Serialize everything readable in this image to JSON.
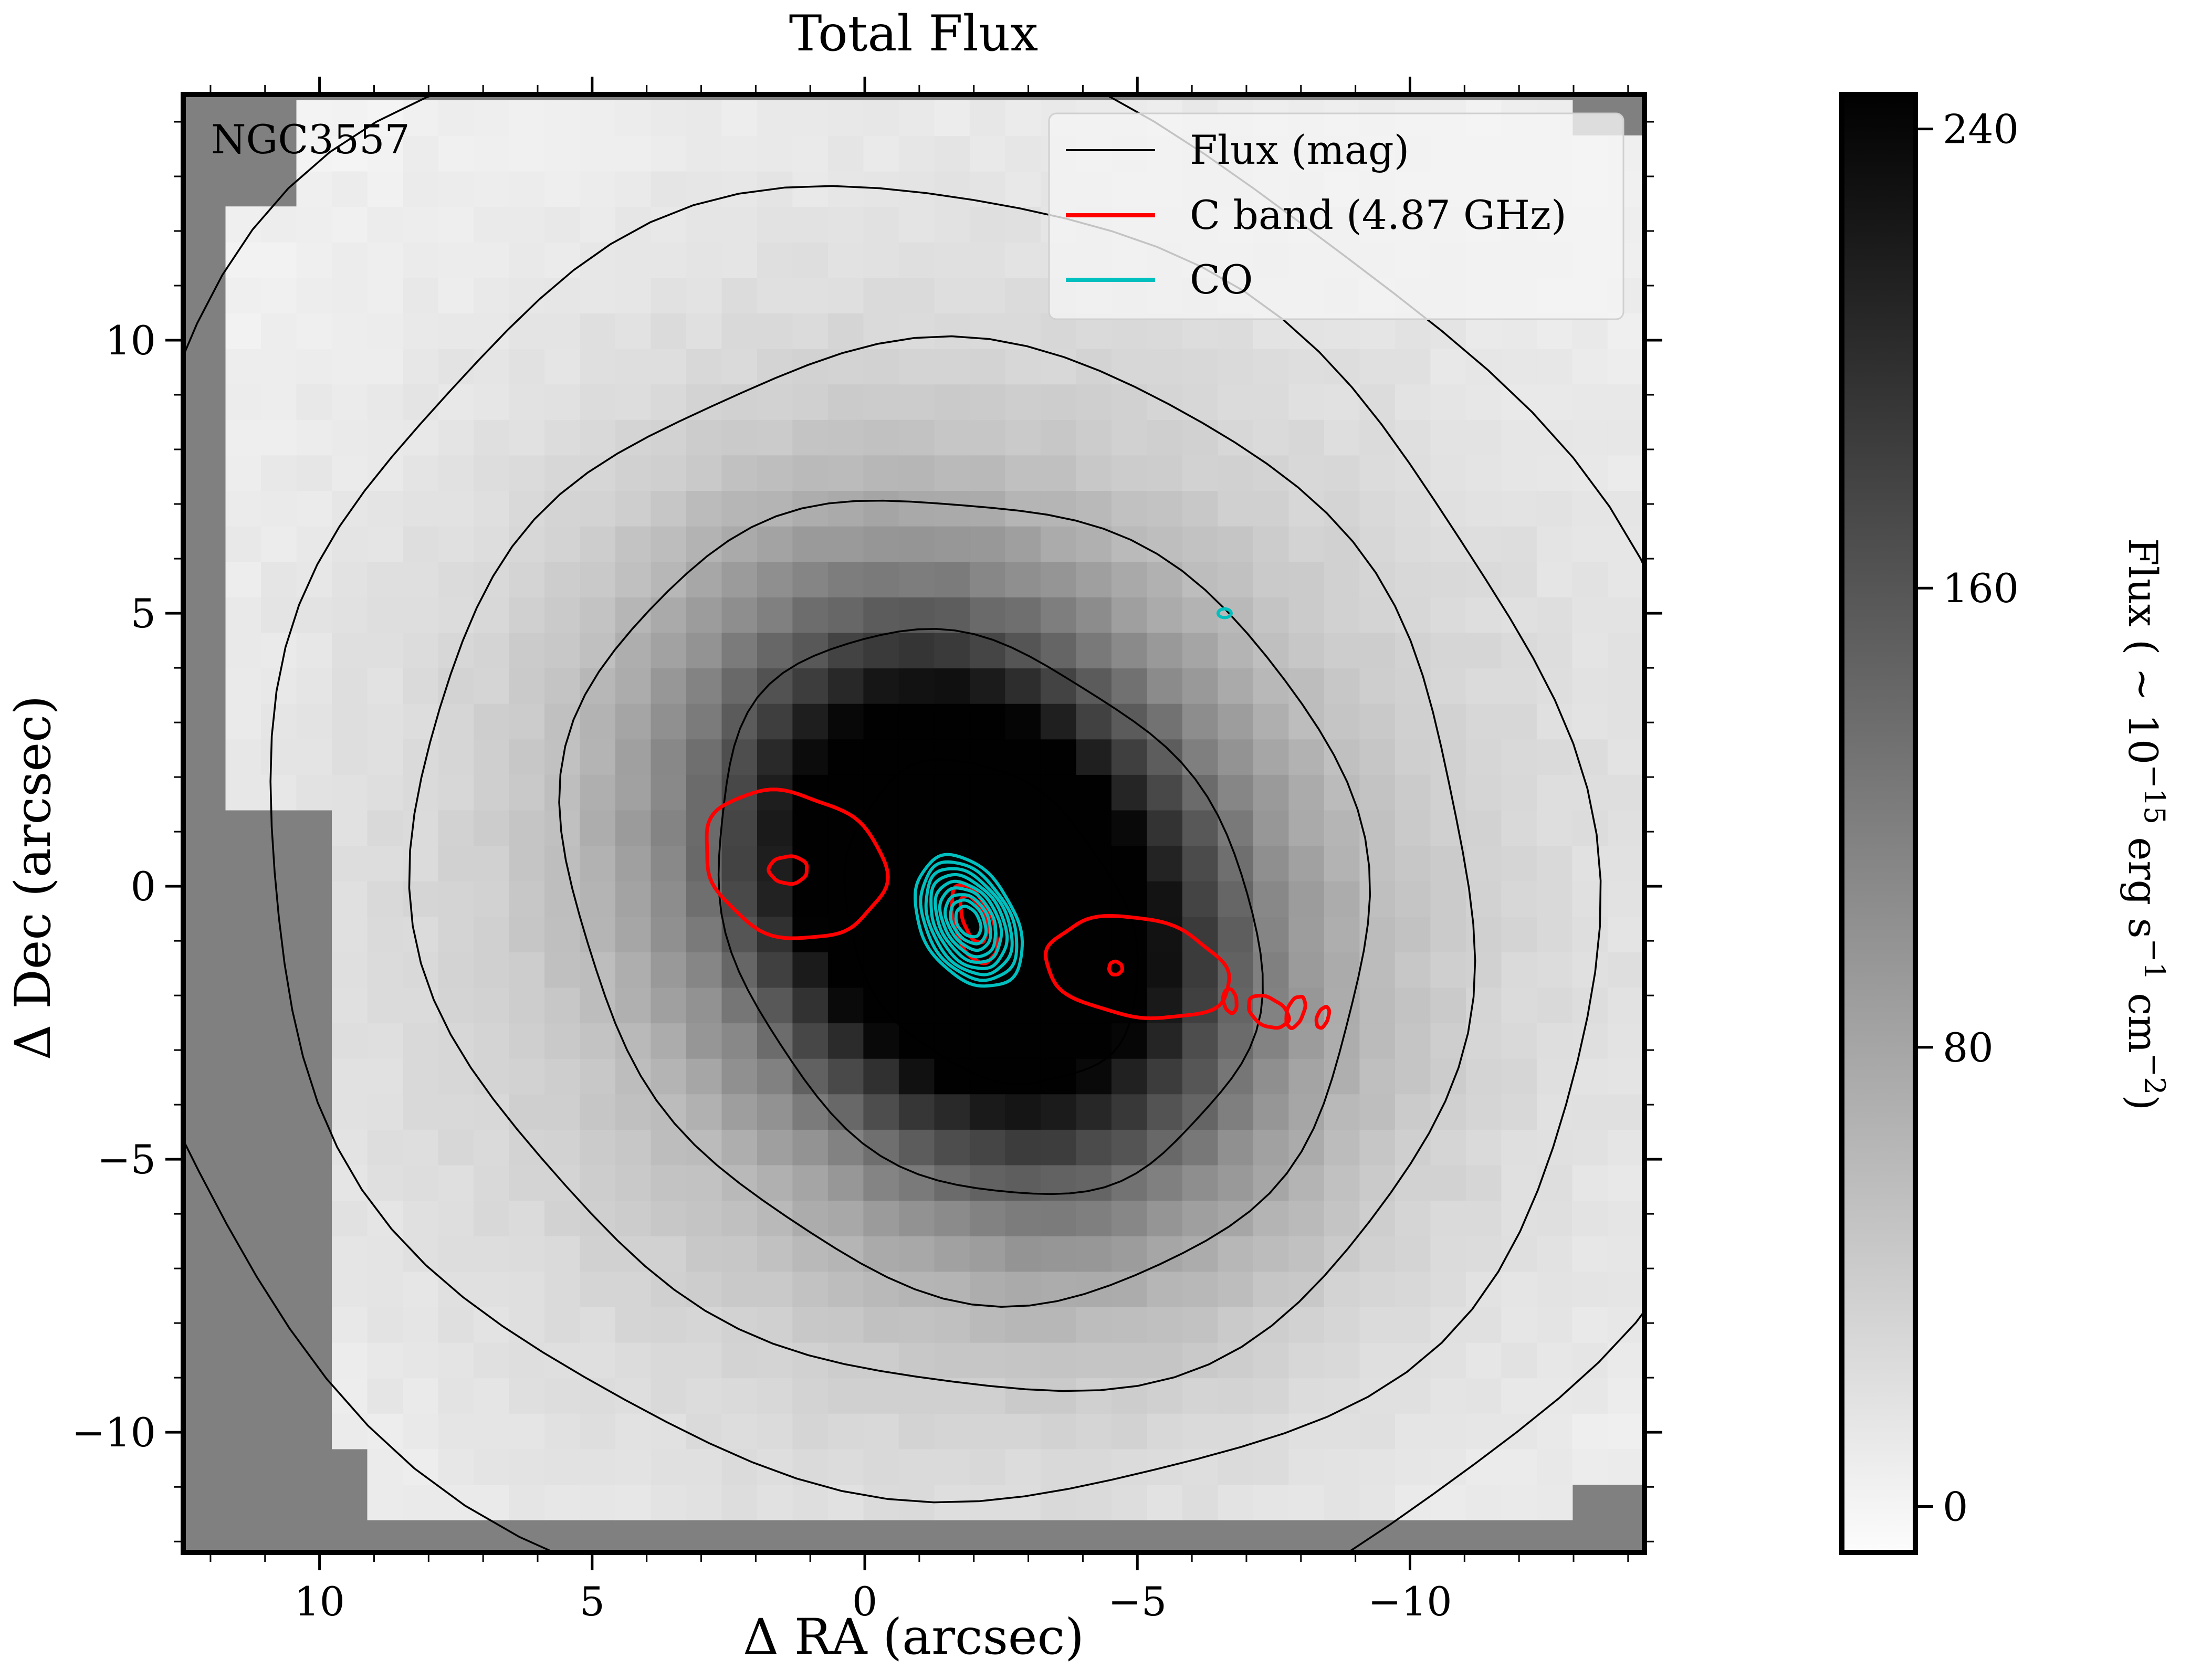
{
  "chart_data": {
    "type": "heatmap",
    "title": "Total Flux",
    "object_label": "NGC3557",
    "xlabel": "Δ RA (arcsec)",
    "ylabel": "Δ Dec (arcsec)",
    "xlim": [
      12.5,
      -14.3
    ],
    "ylim": [
      -12.2,
      14.5
    ],
    "x_axis_inverted": true,
    "xticks": [
      10,
      5,
      0,
      -5,
      -10
    ],
    "xtick_labels": [
      "10",
      "5",
      "0",
      "−5",
      "−10"
    ],
    "yticks": [
      -10,
      -5,
      0,
      5,
      10
    ],
    "ytick_labels": [
      "−10",
      "−5",
      "0",
      "5",
      "10"
    ],
    "legend_position": "upper right",
    "legend": [
      {
        "label": "Flux (mag)",
        "color": "#000000"
      },
      {
        "label": "C band (4.87 GHz)",
        "color": "#ff0000"
      },
      {
        "label": "CO",
        "color": "#00bfbf"
      }
    ],
    "colorbar": {
      "label": "Flux ( ~ 10^-15 erg s^-1 cm^-2)",
      "label_main": "Flux ( ~ 10",
      "label_exp1": "−15",
      "label_mid1": " erg s",
      "label_exp2": "−1",
      "label_mid2": " cm",
      "label_exp3": "−2",
      "label_end": ")",
      "ticks": [
        0,
        80,
        160,
        240
      ],
      "tick_labels": [
        "0",
        "80",
        "160",
        "240"
      ],
      "range": [
        -8,
        246
      ],
      "cmap": "Greys"
    },
    "image_model": {
      "peak_flux": 330,
      "center": [
        -2.0,
        -0.5
      ],
      "sigma_major": 3.6,
      "sigma_minor": 2.7,
      "halo_amplitude": 70,
      "halo_sigma": 7.5,
      "pixel_size": 0.65,
      "background_color": "#808080"
    },
    "flux_contours": [
      {
        "level": 1,
        "center": [
          -2.3,
          -0.7
        ],
        "a": 3.2,
        "b": 2.4,
        "angle_deg": 55
      },
      {
        "level": 2,
        "center": [
          -2.2,
          -0.5
        ],
        "a": 5.6,
        "b": 4.5,
        "angle_deg": 50
      },
      {
        "level": 3,
        "center": [
          -1.9,
          -0.1
        ],
        "a": 7.8,
        "b": 6.9,
        "angle_deg": 45
      },
      {
        "level": 4,
        "center": [
          -1.6,
          0.3
        ],
        "a": 10.0,
        "b": 9.3,
        "angle_deg": 40
      },
      {
        "level": 5,
        "center": [
          -1.2,
          0.6
        ],
        "a": 12.6,
        "b": 11.6,
        "angle_deg": 40
      },
      {
        "level": 6,
        "center": [
          -0.6,
          0.8
        ],
        "a": 16.0,
        "b": 14.0,
        "angle_deg": 40
      }
    ],
    "c_band_contours": [
      {
        "center": [
          1.3,
          0.4
        ],
        "a": 1.7,
        "b": 1.3,
        "angle_deg": 20
      },
      {
        "center": [
          1.4,
          0.3
        ],
        "a": 0.35,
        "b": 0.25,
        "angle_deg": 0
      },
      {
        "center": [
          -2.0,
          -0.7
        ],
        "a": 0.75,
        "b": 0.35,
        "angle_deg": 70
      },
      {
        "center": [
          -2.0,
          -0.6
        ],
        "a": 0.45,
        "b": 0.2,
        "angle_deg": 70
      },
      {
        "center": [
          -5.0,
          -1.5
        ],
        "a": 1.7,
        "b": 0.9,
        "angle_deg": 10
      },
      {
        "center": [
          -4.6,
          -1.5
        ],
        "a": 0.12,
        "b": 0.12,
        "angle_deg": 0
      },
      {
        "center": [
          -6.7,
          -2.1
        ],
        "a": 0.22,
        "b": 0.12,
        "angle_deg": 80
      },
      {
        "center": [
          -7.4,
          -2.3
        ],
        "a": 0.4,
        "b": 0.25,
        "angle_deg": 30
      },
      {
        "center": [
          -7.9,
          -2.3
        ],
        "a": 0.15,
        "b": 0.3,
        "angle_deg": 20
      },
      {
        "center": [
          -8.4,
          -2.4
        ],
        "a": 0.1,
        "b": 0.2,
        "angle_deg": 20
      }
    ],
    "co_contours": {
      "center": [
        -1.9,
        -0.65
      ],
      "angle_deg": 60,
      "semi_axes": [
        [
          1.3,
          0.85
        ],
        [
          1.17,
          0.76
        ],
        [
          1.05,
          0.68
        ],
        [
          0.93,
          0.6
        ],
        [
          0.8,
          0.52
        ],
        [
          0.68,
          0.44
        ],
        [
          0.55,
          0.36
        ],
        [
          0.43,
          0.28
        ],
        [
          0.3,
          0.2
        ]
      ],
      "extra": [
        {
          "center": [
            -6.6,
            5.0
          ],
          "a": 0.12,
          "b": 0.08,
          "angle_deg": 0
        }
      ]
    }
  }
}
